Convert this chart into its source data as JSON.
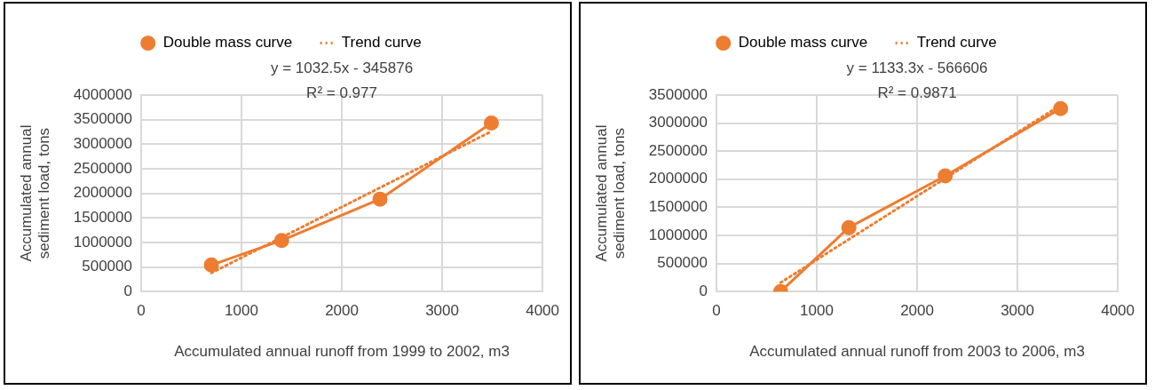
{
  "chart_data": [
    {
      "type": "line",
      "xlabel": "Accumulated annual runoff from 1999 to 2002, m3",
      "ylabel": "Accumulated annual sediment load, tons",
      "xlim": [
        0,
        4000
      ],
      "xticks": [
        0,
        1000,
        2000,
        3000,
        4000
      ],
      "ylim": [
        0,
        4000000
      ],
      "yticks": [
        0,
        500000,
        1000000,
        1500000,
        2000000,
        2500000,
        3000000,
        3500000,
        4000000
      ],
      "grid": true,
      "legend": "top",
      "annotations": [
        "y = 1032.5x - 345876",
        "R² = 0.977"
      ],
      "series": [
        {
          "name": "Double mass curve",
          "type": "line",
          "color": "#ed7d31",
          "marker": "circle",
          "line_style": "solid",
          "x": [
            700,
            1400,
            2380,
            3490
          ],
          "values": [
            540000,
            1040000,
            1880000,
            3430000
          ]
        },
        {
          "name": "Trend curve",
          "type": "line",
          "color": "#ed7d31",
          "marker": "none",
          "line_style": "dotted",
          "x": [
            700,
            3490
          ],
          "values": [
            380000,
            3260000
          ]
        }
      ]
    },
    {
      "type": "line",
      "xlabel": "Accumulated annual runoff from 2003 to 2006, m3",
      "ylabel": "Accumulated annual sediment load, tons",
      "xlim": [
        0,
        4000
      ],
      "xticks": [
        0,
        1000,
        2000,
        3000,
        4000
      ],
      "ylim": [
        0,
        3500000
      ],
      "yticks": [
        0,
        500000,
        1000000,
        1500000,
        2000000,
        2500000,
        3000000,
        3500000
      ],
      "grid": true,
      "legend": "top",
      "annotations": [
        "y = 1133.3x - 566606",
        "R² = 0.9871"
      ],
      "series": [
        {
          "name": "Double mass curve",
          "type": "line",
          "color": "#ed7d31",
          "marker": "circle",
          "line_style": "solid",
          "x": [
            640,
            1320,
            2280,
            3430
          ],
          "values": [
            0,
            1140000,
            2060000,
            3260000
          ]
        },
        {
          "name": "Trend curve",
          "type": "line",
          "color": "#ed7d31",
          "marker": "none",
          "line_style": "dotted",
          "x": [
            640,
            3430
          ],
          "values": [
            160000,
            3320000
          ]
        }
      ]
    }
  ]
}
